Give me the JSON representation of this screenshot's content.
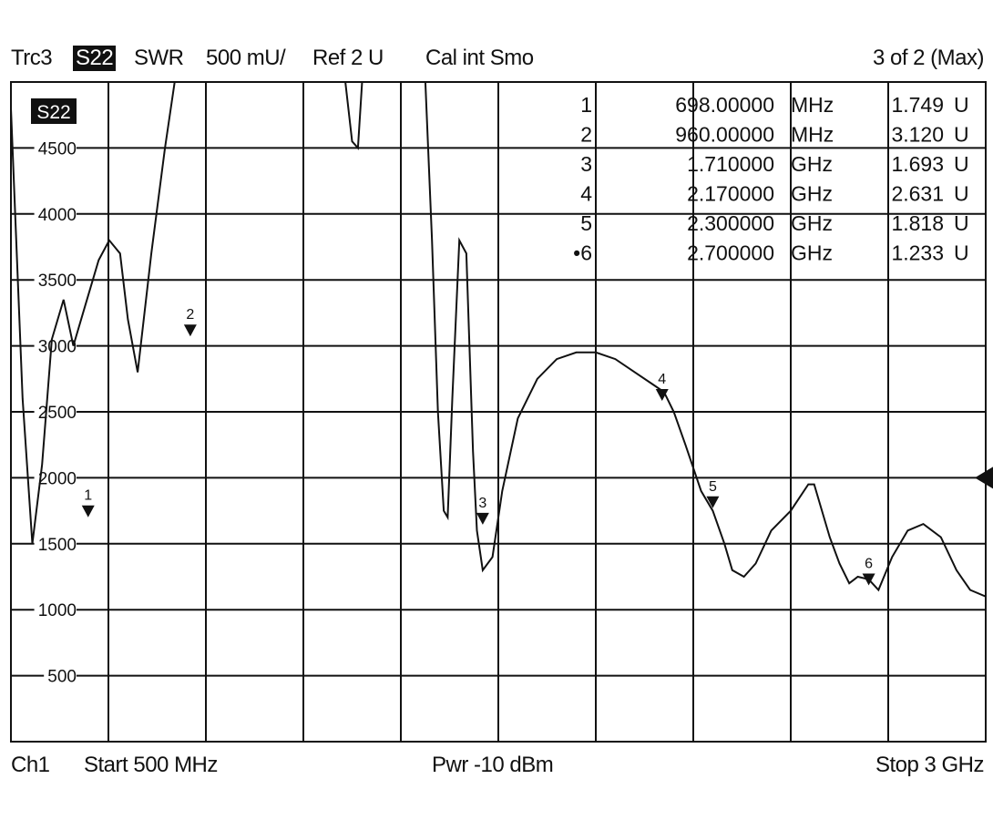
{
  "header": {
    "trace": "Trc3",
    "param": "S22",
    "format": "SWR",
    "scale": "500 mU/",
    "ref": "Ref 2 U",
    "cal": "Cal int Smo",
    "page": "3 of 2 (Max)"
  },
  "footer": {
    "channel": "Ch1",
    "start": "Start  500 MHz",
    "power": "Pwr  -10 dBm",
    "stop": "Stop  3 GHz"
  },
  "chart_data": {
    "type": "line",
    "trace_label": "S22",
    "xlim": [
      500,
      3000
    ],
    "x_unit": "MHz",
    "ylim": [
      0,
      5000
    ],
    "yticks": [
      "500",
      "1000",
      "1500",
      "2000",
      "2500",
      "3000",
      "3500",
      "4000",
      "4500"
    ],
    "grid": true,
    "ref_level": 2000,
    "series": [
      {
        "x": [
          500,
          530,
          555,
          580,
          605,
          635,
          660,
          690,
          725,
          752,
          780,
          800,
          825,
          860,
          895,
          930,
          945,
          963,
          985,
          1004,
          1030,
          1045,
          1065,
          1090,
          1105,
          1118,
          1200,
          1350,
          1375,
          1390,
          1405,
          1500,
          1560,
          1580,
          1595,
          1610,
          1620,
          1632,
          1650,
          1668,
          1685,
          1695,
          1710,
          1735,
          1760,
          1800,
          1850,
          1900,
          1950,
          2000,
          2050,
          2100,
          2150,
          2175,
          2200,
          2230,
          2270,
          2300,
          2330,
          2350,
          2380,
          2410,
          2450,
          2500,
          2545,
          2560,
          2575,
          2600,
          2625,
          2650,
          2672,
          2700,
          2725,
          2760,
          2800,
          2840,
          2885,
          2925,
          2960,
          3000
        ],
        "y": [
          4800,
          2600,
          1500,
          2100,
          3050,
          3350,
          3000,
          3300,
          3650,
          3800,
          3700,
          3200,
          2800,
          3700,
          4500,
          5200,
          5200,
          5200,
          5200,
          5200,
          5200,
          5200,
          5200,
          5200,
          5200,
          5200,
          5200,
          5200,
          4550,
          4500,
          5200,
          5200,
          5200,
          3800,
          2500,
          1750,
          1700,
          2600,
          3800,
          3700,
          2200,
          1600,
          1300,
          1400,
          1900,
          2450,
          2750,
          2900,
          2950,
          2950,
          2900,
          2800,
          2700,
          2650,
          2500,
          2250,
          1900,
          1750,
          1500,
          1300,
          1250,
          1350,
          1600,
          1750,
          1950,
          1950,
          1800,
          1550,
          1350,
          1200,
          1250,
          1230,
          1150,
          1400,
          1600,
          1650,
          1550,
          1300,
          1150,
          1100
        ]
      }
    ],
    "markers": [
      {
        "id": "1",
        "x": 698,
        "y": 1749,
        "freq": "698.00000",
        "unit": "MHz",
        "value": "1.749",
        "vunit": "U"
      },
      {
        "id": "2",
        "x": 960,
        "y": 3120,
        "freq": "960.00000",
        "unit": "MHz",
        "value": "3.120",
        "vunit": "U"
      },
      {
        "id": "3",
        "x": 1710,
        "y": 1693,
        "freq": "1.710000",
        "unit": "GHz",
        "value": "1.693",
        "vunit": "U"
      },
      {
        "id": "4",
        "x": 2170,
        "y": 2631,
        "freq": "2.170000",
        "unit": "GHz",
        "value": "2.631",
        "vunit": "U"
      },
      {
        "id": "5",
        "x": 2300,
        "y": 1818,
        "freq": "2.300000",
        "unit": "GHz",
        "value": "1.818",
        "vunit": "U"
      },
      {
        "id": "6",
        "x": 2700,
        "y": 1233,
        "freq": "2.700000",
        "unit": "GHz",
        "value": "1.233",
        "vunit": "U",
        "active": true
      }
    ]
  }
}
